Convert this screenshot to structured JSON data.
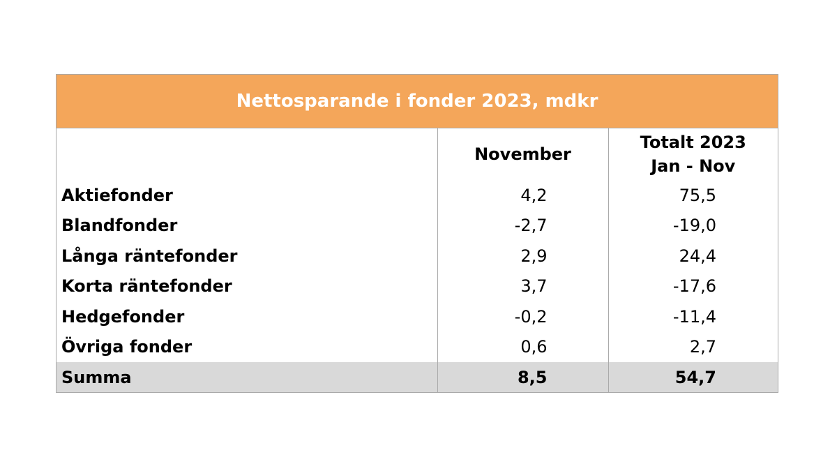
{
  "title": "Nettosparande i fonder 2023, mdkr",
  "headers": {
    "november": "November",
    "total_line1": "Totalt 2023",
    "total_line2": "Jan - Nov"
  },
  "rows": [
    {
      "label": "Aktiefonder",
      "november": "4,2",
      "total": "75,5"
    },
    {
      "label": "Blandfonder",
      "november": "-2,7",
      "total": "-19,0"
    },
    {
      "label": "Långa räntefonder",
      "november": "2,9",
      "total": "24,4"
    },
    {
      "label": "Korta räntefonder",
      "november": "3,7",
      "total": "-17,6"
    },
    {
      "label": "Hedgefonder",
      "november": "-0,2",
      "total": "-11,4"
    },
    {
      "label": "Övriga fonder",
      "november": "0,6",
      "total": "2,7"
    }
  ],
  "summary": {
    "label": "Summa",
    "november": "8,5",
    "total": "54,7"
  },
  "colors": {
    "title_bg": "#f4a65a",
    "title_text": "#ffffff",
    "summary_bg": "#d9d9d9",
    "border": "#a9a9a9"
  }
}
